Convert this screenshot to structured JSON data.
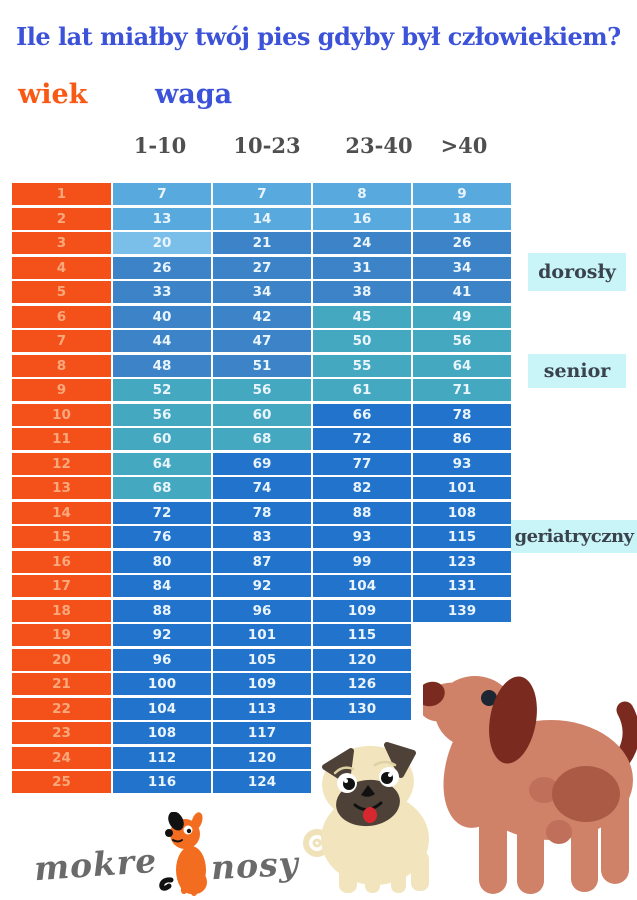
{
  "page": {
    "title": "Ile lat miałby twój pies gdyby był człowiekiem?"
  },
  "legend": {
    "age_label": "wiek",
    "weight_label": "waga"
  },
  "stage_labels": {
    "adult": "dorosły",
    "senior": "senior",
    "geriatric": "geriatryczny"
  },
  "logo": {
    "word_left": "mokre",
    "word_right": "nosy"
  },
  "colors": {
    "title_blue": "#3c52d8",
    "accent_orange": "#f4511a",
    "age_cell_text": "#f9a87c",
    "header_gray": "#4f4f4f",
    "cell_text": "#e9f4fc",
    "label_box_bg": "#c9f5f9",
    "label_text": "#3a434d",
    "stages": {
      "young": "#58a9de",
      "young_light": "#79bfe9",
      "adult": "#3c84c7",
      "senior": "#43a8c0",
      "geriatric": "#2273cb"
    }
  },
  "chart_data": {
    "type": "table",
    "title": "Ile lat miałby twój pies gdyby był człowiekiem?",
    "row_header_label": "wiek",
    "column_group_label": "waga",
    "categories": [
      "1-10",
      "10-23",
      "23-40",
      ">40"
    ],
    "life_stages": [
      "dorosły",
      "senior",
      "geriatryczny"
    ],
    "rows": [
      {
        "age": 1,
        "values": [
          7,
          7,
          8,
          9
        ],
        "stages": [
          "young",
          "young",
          "young",
          "young"
        ]
      },
      {
        "age": 2,
        "values": [
          13,
          14,
          16,
          18
        ],
        "stages": [
          "young",
          "young",
          "young",
          "young"
        ]
      },
      {
        "age": 3,
        "values": [
          20,
          21,
          24,
          26
        ],
        "stages": [
          "young_light",
          "adult",
          "adult",
          "adult"
        ]
      },
      {
        "age": 4,
        "values": [
          26,
          27,
          31,
          34
        ],
        "stages": [
          "adult",
          "adult",
          "adult",
          "adult"
        ]
      },
      {
        "age": 5,
        "values": [
          33,
          34,
          38,
          41
        ],
        "stages": [
          "adult",
          "adult",
          "adult",
          "adult"
        ]
      },
      {
        "age": 6,
        "values": [
          40,
          42,
          45,
          49
        ],
        "stages": [
          "adult",
          "adult",
          "senior",
          "senior"
        ]
      },
      {
        "age": 7,
        "values": [
          44,
          47,
          50,
          56
        ],
        "stages": [
          "adult",
          "adult",
          "senior",
          "senior"
        ]
      },
      {
        "age": 8,
        "values": [
          48,
          51,
          55,
          64
        ],
        "stages": [
          "adult",
          "adult",
          "senior",
          "senior"
        ]
      },
      {
        "age": 9,
        "values": [
          52,
          56,
          61,
          71
        ],
        "stages": [
          "senior",
          "senior",
          "senior",
          "senior"
        ]
      },
      {
        "age": 10,
        "values": [
          56,
          60,
          66,
          78
        ],
        "stages": [
          "senior",
          "senior",
          "geriatric",
          "geriatric"
        ]
      },
      {
        "age": 11,
        "values": [
          60,
          68,
          72,
          86
        ],
        "stages": [
          "senior",
          "senior",
          "geriatric",
          "geriatric"
        ]
      },
      {
        "age": 12,
        "values": [
          64,
          69,
          77,
          93
        ],
        "stages": [
          "senior",
          "geriatric",
          "geriatric",
          "geriatric"
        ]
      },
      {
        "age": 13,
        "values": [
          68,
          74,
          82,
          101
        ],
        "stages": [
          "senior",
          "geriatric",
          "geriatric",
          "geriatric"
        ]
      },
      {
        "age": 14,
        "values": [
          72,
          78,
          88,
          108
        ],
        "stages": [
          "geriatric",
          "geriatric",
          "geriatric",
          "geriatric"
        ]
      },
      {
        "age": 15,
        "values": [
          76,
          83,
          93,
          115
        ],
        "stages": [
          "geriatric",
          "geriatric",
          "geriatric",
          "geriatric"
        ]
      },
      {
        "age": 16,
        "values": [
          80,
          87,
          99,
          123
        ],
        "stages": [
          "geriatric",
          "geriatric",
          "geriatric",
          "geriatric"
        ]
      },
      {
        "age": 17,
        "values": [
          84,
          92,
          104,
          131
        ],
        "stages": [
          "geriatric",
          "geriatric",
          "geriatric",
          "geriatric"
        ]
      },
      {
        "age": 18,
        "values": [
          88,
          96,
          109,
          139
        ],
        "stages": [
          "geriatric",
          "geriatric",
          "geriatric",
          "geriatric"
        ]
      },
      {
        "age": 19,
        "values": [
          92,
          101,
          115,
          null
        ],
        "stages": [
          "geriatric",
          "geriatric",
          "geriatric",
          null
        ]
      },
      {
        "age": 20,
        "values": [
          96,
          105,
          120,
          null
        ],
        "stages": [
          "geriatric",
          "geriatric",
          "geriatric",
          null
        ]
      },
      {
        "age": 21,
        "values": [
          100,
          109,
          126,
          null
        ],
        "stages": [
          "geriatric",
          "geriatric",
          "geriatric",
          null
        ]
      },
      {
        "age": 22,
        "values": [
          104,
          113,
          130,
          null
        ],
        "stages": [
          "geriatric",
          "geriatric",
          "geriatric",
          null
        ]
      },
      {
        "age": 23,
        "values": [
          108,
          117,
          null,
          null
        ],
        "stages": [
          "geriatric",
          "geriatric",
          null,
          null
        ]
      },
      {
        "age": 24,
        "values": [
          112,
          120,
          null,
          null
        ],
        "stages": [
          "geriatric",
          "geriatric",
          null,
          null
        ]
      },
      {
        "age": 25,
        "values": [
          116,
          124,
          null,
          null
        ],
        "stages": [
          "geriatric",
          "geriatric",
          null,
          null
        ]
      }
    ]
  }
}
